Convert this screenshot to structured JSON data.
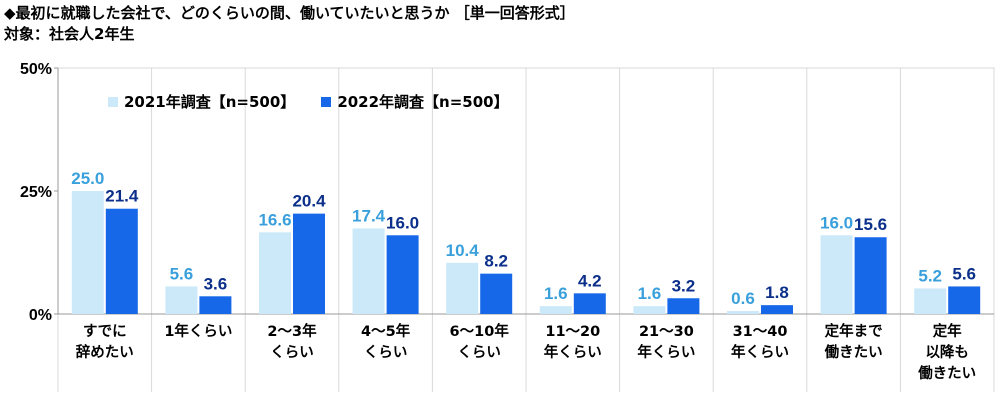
{
  "title": "◆最初に就職した会社で、どのくらいの間、働いていたいと思うか ［単一回答形式］",
  "subtitle": "対象：社会人2年生",
  "colors": {
    "series_2021": "#cce9fa",
    "series_2022": "#1668e8",
    "label_2021": "#3aa0dc",
    "label_2022": "#0b2f8a",
    "axis": "#999999",
    "grid": "#d9d9d9"
  },
  "chart_data": {
    "type": "bar",
    "title": "◆最初に就職した会社で、どのくらいの間、働いていたいと思うか ［単一回答形式］",
    "ylim": [
      0,
      50
    ],
    "yticks": [
      "0%",
      "25%",
      "50%"
    ],
    "categories": [
      "すでに\n辞めたい",
      "1年くらい",
      "2～3年\nくらい",
      "4～5年\nくらい",
      "6～10年\nくらい",
      "11～20\n年くらい",
      "21～30\n年くらい",
      "31～40\n年くらい",
      "定年まで\n働きたい",
      "定年\n以降も\n働きたい"
    ],
    "series": [
      {
        "name": "2021年調査【n=500】",
        "values": [
          25.0,
          5.6,
          16.6,
          17.4,
          10.4,
          1.6,
          1.6,
          0.6,
          16.0,
          5.2
        ]
      },
      {
        "name": "2022年調査【n=500】",
        "values": [
          21.4,
          3.6,
          20.4,
          16.0,
          8.2,
          4.2,
          3.2,
          1.8,
          15.6,
          5.6
        ]
      }
    ],
    "legend_position": "top-left",
    "grid": "vertical separators"
  }
}
